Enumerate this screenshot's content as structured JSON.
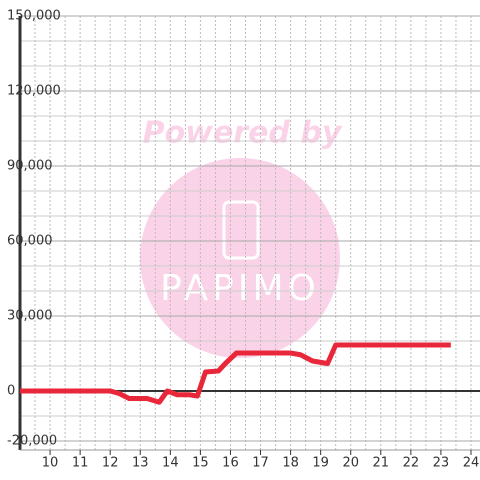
{
  "chart_data": {
    "type": "line",
    "watermark": {
      "line1": "Powered by",
      "line2": "PAPIMO"
    },
    "x": [
      9,
      12.0,
      12.3,
      12.63,
      13.23,
      13.63,
      13.9,
      14.23,
      14.63,
      14.9,
      15.17,
      15.6,
      15.83,
      16.2,
      18.0,
      18.33,
      18.73,
      19.23,
      19.5,
      23.33
    ],
    "series": [
      {
        "color": "#e8283a",
        "values": [
          0,
          0,
          -1000,
          -3000,
          -3000,
          -4500,
          0,
          -1500,
          -1500,
          -2000,
          7600,
          8000,
          11000,
          15200,
          15200,
          14500,
          12000,
          11000,
          18400,
          18400
        ]
      }
    ],
    "xlim": [
      9,
      24.3
    ],
    "xticks": [
      10,
      11,
      12,
      13,
      14,
      15,
      16,
      17,
      18,
      19,
      20,
      21,
      22,
      23,
      24
    ],
    "xgrid": [
      9.5,
      10,
      10.5,
      11,
      11.5,
      12,
      12.5,
      13,
      13.5,
      14,
      14.5,
      15,
      15.5,
      16,
      16.5,
      17,
      17.5,
      18,
      18.5,
      19,
      19.5,
      20,
      20.5,
      21,
      21.5,
      22,
      22.5,
      23,
      23.5,
      24
    ],
    "ylim": [
      -20000,
      150000
    ],
    "yticks": [
      {
        "value": -20000,
        "label": "-20,000"
      },
      0,
      {
        "value": 30000,
        "label": "30,000"
      },
      {
        "value": 60000,
        "label": "60,000"
      },
      {
        "value": 90000,
        "label": "90,000"
      },
      {
        "value": 120000,
        "label": "120,000"
      },
      {
        "value": 150000,
        "label": "150,000"
      }
    ],
    "ygrid": [
      -10000,
      10000,
      20000,
      40000,
      50000,
      70000,
      80000,
      100000,
      110000,
      130000,
      140000
    ],
    "grid": true
  }
}
